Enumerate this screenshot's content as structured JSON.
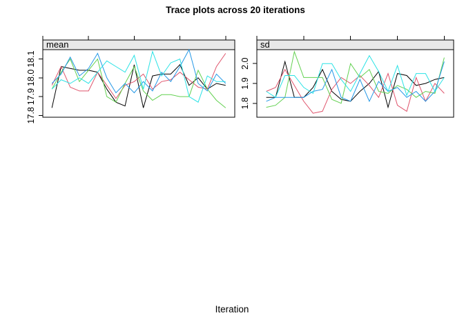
{
  "title": "Trace plots across 20 iterations",
  "xlabel": "Iteration",
  "colors": {
    "frame": "#000000",
    "strip_bg": "#E8E8E8",
    "background": "#FFFFFF",
    "axis": "#000000"
  },
  "chart_data": [
    {
      "type": "line",
      "panel": "mean",
      "x": [
        1,
        2,
        3,
        4,
        5,
        6,
        7,
        8,
        9,
        10,
        11,
        12,
        13,
        14,
        15,
        16,
        17,
        18,
        19,
        20
      ],
      "xlim": [
        0,
        21
      ],
      "xticks": [
        0,
        5,
        10,
        15,
        20
      ],
      "ylim": [
        17.79,
        18.15
      ],
      "yticks": [
        {
          "v": 17.8,
          "label": "17.8"
        },
        {
          "v": 17.9,
          "label": "17.9"
        },
        {
          "v": 18.0,
          "label": "18.0"
        },
        {
          "v": 18.1,
          "label": "18.1"
        }
      ],
      "series": [
        {
          "name": "line-1",
          "color": "#000000",
          "values": [
            17.84,
            18.06,
            18.05,
            18.04,
            18.04,
            18.03,
            17.94,
            17.87,
            17.85,
            18.07,
            17.84,
            18.01,
            18.02,
            18.02,
            18.07,
            17.96,
            18.0,
            17.94,
            17.97,
            17.96
          ]
        },
        {
          "name": "line-2",
          "color": "#DF536B",
          "values": [
            17.96,
            18.06,
            17.95,
            17.93,
            17.93,
            18.03,
            17.96,
            17.89,
            17.96,
            17.98,
            18.02,
            17.94,
            17.98,
            17.99,
            18.03,
            17.99,
            17.95,
            17.94,
            18.06,
            18.13
          ]
        },
        {
          "name": "line-3",
          "color": "#61D04F",
          "values": [
            17.94,
            18.03,
            18.1,
            17.98,
            18.04,
            18.1,
            17.9,
            17.87,
            17.97,
            18.06,
            17.93,
            17.88,
            17.91,
            17.91,
            17.9,
            17.9,
            18.04,
            17.94,
            17.88,
            17.84
          ]
        },
        {
          "name": "line-4",
          "color": "#2297E6",
          "values": [
            17.97,
            18.02,
            18.11,
            18.01,
            18.05,
            18.13,
            18.0,
            17.92,
            17.97,
            17.92,
            17.98,
            17.93,
            18.03,
            17.98,
            18.06,
            18.15,
            17.97,
            17.93,
            18.02,
            17.97
          ]
        },
        {
          "name": "line-5",
          "color": "#28E2E5",
          "values": [
            17.94,
            17.99,
            17.97,
            18.0,
            17.97,
            18.03,
            18.09,
            18.06,
            18.03,
            18.12,
            17.94,
            18.14,
            18.01,
            18.08,
            18.1,
            17.9,
            17.87,
            18.01,
            17.98,
            17.98
          ]
        }
      ]
    },
    {
      "type": "line",
      "panel": "sd",
      "x": [
        1,
        2,
        3,
        4,
        5,
        6,
        7,
        8,
        9,
        10,
        11,
        12,
        13,
        14,
        15,
        16,
        17,
        18,
        19,
        20
      ],
      "xlim": [
        0,
        21
      ],
      "xticks": [
        0,
        5,
        10,
        15,
        20
      ],
      "ylim": [
        1.73,
        2.07
      ],
      "yticks": [
        {
          "v": 1.8,
          "label": "1.8"
        },
        {
          "v": 1.9,
          "label": "1.9"
        },
        {
          "v": 2.0,
          "label": "2.0"
        }
      ],
      "series": [
        {
          "name": "line-1",
          "color": "#000000",
          "values": [
            1.83,
            1.83,
            2.01,
            1.83,
            1.83,
            1.88,
            1.97,
            1.86,
            1.82,
            1.81,
            1.86,
            1.9,
            1.96,
            1.78,
            1.95,
            1.94,
            1.89,
            1.9,
            1.92,
            1.93
          ]
        },
        {
          "name": "line-2",
          "color": "#DF536B",
          "values": [
            1.86,
            1.88,
            1.97,
            1.89,
            1.81,
            1.75,
            1.76,
            1.87,
            1.93,
            1.9,
            1.94,
            1.89,
            1.83,
            1.95,
            1.79,
            1.76,
            1.93,
            1.81,
            1.9,
            1.85
          ]
        },
        {
          "name": "line-3",
          "color": "#61D04F",
          "values": [
            1.78,
            1.79,
            1.83,
            2.06,
            1.93,
            1.93,
            1.93,
            1.82,
            1.8,
            2.0,
            1.93,
            1.97,
            1.86,
            1.85,
            1.89,
            1.87,
            1.83,
            1.86,
            1.85,
            2.03
          ]
        },
        {
          "name": "line-4",
          "color": "#2297E6",
          "values": [
            1.81,
            1.83,
            1.83,
            1.83,
            1.83,
            1.86,
            1.87,
            1.97,
            1.83,
            1.81,
            1.92,
            1.81,
            1.91,
            1.86,
            1.88,
            1.83,
            1.86,
            1.81,
            1.86,
            2.01
          ]
        },
        {
          "name": "line-5",
          "color": "#28E2E5",
          "values": [
            1.86,
            1.83,
            1.94,
            1.94,
            1.88,
            1.85,
            2.0,
            2.0,
            1.92,
            1.86,
            1.95,
            2.04,
            1.96,
            1.86,
            1.99,
            1.84,
            1.95,
            1.95,
            1.86,
            1.93
          ]
        }
      ]
    }
  ]
}
